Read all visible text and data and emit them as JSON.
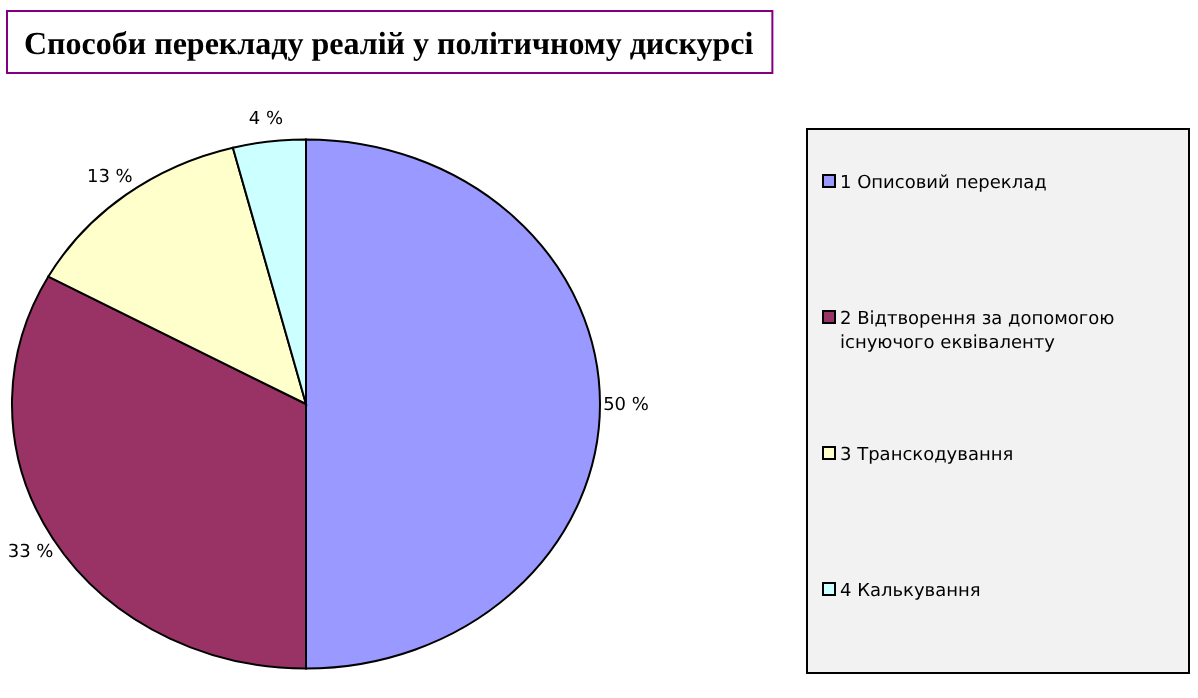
{
  "chart_data": {
    "type": "pie",
    "title": "Способи перекладу реалій у політичному дискурсі",
    "categories": [
      "1 Описовий переклад",
      "2 Відтворення за допомогою існуючого еквіваленту",
      "3 Транскодування",
      "4 Калькування"
    ],
    "values": [
      50,
      33,
      13,
      4
    ],
    "colors": [
      "#9999ff",
      "#993366",
      "#ffffcc",
      "#ccffff"
    ],
    "value_labels": [
      "50 %",
      "33 %",
      "13 %",
      "4 %"
    ],
    "legend": "right"
  }
}
